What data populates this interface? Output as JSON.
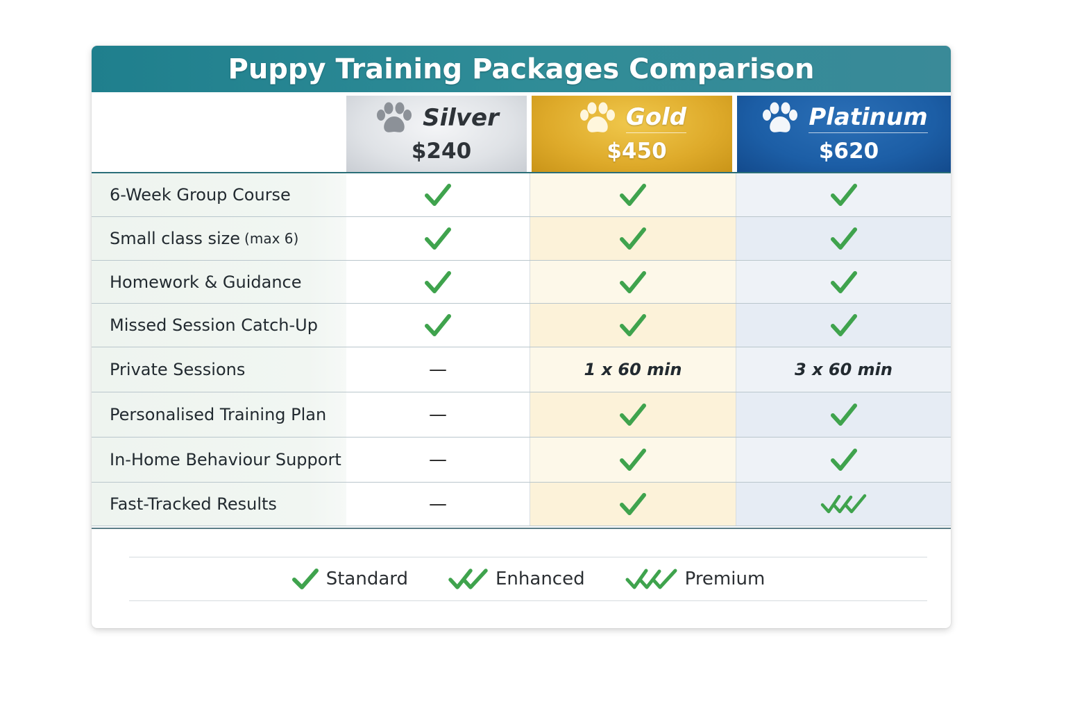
{
  "title": "Puppy Training Packages Comparison",
  "plans": [
    {
      "id": "silver",
      "name": "Silver",
      "price": "$240",
      "icon": "paw-icon",
      "color": "#c9cdd3"
    },
    {
      "id": "gold",
      "name": "Gold",
      "price": "$450",
      "icon": "paw-icon",
      "color": "#deaa2a"
    },
    {
      "id": "platinum",
      "name": "Platinum",
      "price": "$620",
      "icon": "paw-icon",
      "color": "#1c5ea6"
    }
  ],
  "features": [
    {
      "label": "6-Week Group Course",
      "label_suffix": "",
      "silver": "check",
      "gold": "check",
      "platinum": "check"
    },
    {
      "label": "Small class size",
      "label_suffix": "(max 6)",
      "silver": "check",
      "gold": "check",
      "platinum": "check"
    },
    {
      "label": "Homework & Guidance",
      "label_suffix": "",
      "silver": "check",
      "gold": "check",
      "platinum": "check"
    },
    {
      "label": "Missed Session Catch-Up",
      "label_suffix": "",
      "silver": "check",
      "gold": "check",
      "platinum": "check"
    },
    {
      "label": "Private Sessions",
      "label_suffix": "",
      "silver": "—",
      "gold": "1 x 60 min",
      "platinum": "3 x 60 min"
    },
    {
      "label": "Personalised Training Plan",
      "label_suffix": "",
      "silver": "—",
      "gold": "check",
      "platinum": "check"
    },
    {
      "label": "In-Home Behaviour Support",
      "label_suffix": "",
      "silver": "—",
      "gold": "check",
      "platinum": "check"
    },
    {
      "label": "Fast-Tracked Results",
      "label_suffix": "",
      "silver": "—",
      "gold": "check",
      "platinum": "check3"
    }
  ],
  "legend": [
    {
      "label": "Standard",
      "icon": "check-icon"
    },
    {
      "label": "Enhanced",
      "icon": "double-check-icon"
    },
    {
      "label": "Premium",
      "icon": "triple-check-icon"
    }
  ],
  "colors": {
    "title_bar": "#2f8c97",
    "check_green": "#3fa34d"
  }
}
